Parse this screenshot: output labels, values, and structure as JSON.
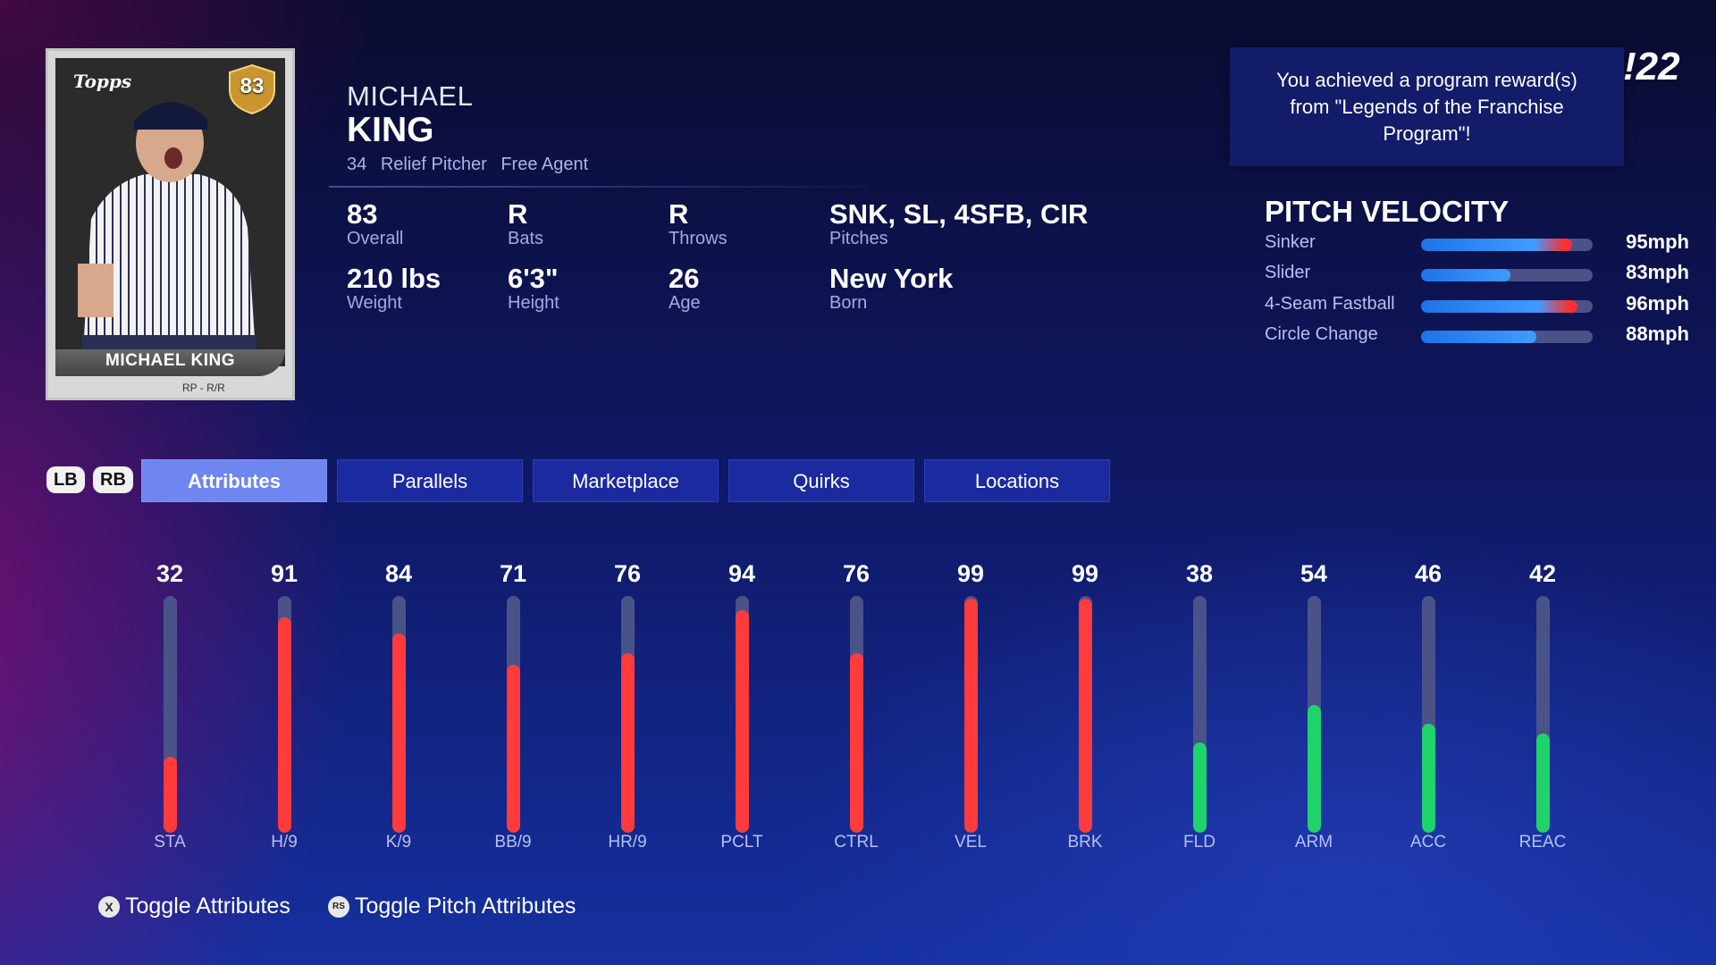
{
  "card": {
    "logo": "Topps",
    "rating": "83",
    "name": "MICHAEL KING",
    "position": "RP - R/R"
  },
  "player": {
    "first_name": "MICHAEL",
    "last_name": "KING",
    "number": "34",
    "position": "Relief Pitcher",
    "team": "Free Agent"
  },
  "stats": [
    {
      "value": "83",
      "label": "Overall"
    },
    {
      "value": "R",
      "label": "Bats"
    },
    {
      "value": "R",
      "label": "Throws"
    },
    {
      "value": "SNK, SL, 4SFB, CIR",
      "label": "Pitches"
    },
    {
      "value": "210 lbs",
      "label": "Weight"
    },
    {
      "value": "6'3\"",
      "label": "Height"
    },
    {
      "value": "26",
      "label": "Age"
    },
    {
      "value": "New York",
      "label": "Born"
    }
  ],
  "notification": "You achieved a program reward(s) from \"Legends of the Franchise Program\"!",
  "game_logo": "!22",
  "pitch_velocity": {
    "title": "PITCH VELOCITY",
    "pitches": [
      {
        "name": "Sinker",
        "value": "95mph",
        "fill": 0.88,
        "hot": true
      },
      {
        "name": "Slider",
        "value": "83mph",
        "fill": 0.52,
        "hot": false
      },
      {
        "name": "4-Seam Fastball",
        "value": "96mph",
        "fill": 0.91,
        "hot": true
      },
      {
        "name": "Circle Change",
        "value": "88mph",
        "fill": 0.67,
        "hot": false
      }
    ]
  },
  "bumpers": {
    "left": "LB",
    "right": "RB"
  },
  "tabs": [
    {
      "label": "Attributes",
      "active": true
    },
    {
      "label": "Parallels",
      "active": false
    },
    {
      "label": "Marketplace",
      "active": false
    },
    {
      "label": "Quirks",
      "active": false
    },
    {
      "label": "Locations",
      "active": false
    }
  ],
  "attributes": [
    {
      "label": "STA",
      "value": 32,
      "color": "#ff3b3b"
    },
    {
      "label": "H/9",
      "value": 91,
      "color": "#ff3b3b"
    },
    {
      "label": "K/9",
      "value": 84,
      "color": "#ff3b3b"
    },
    {
      "label": "BB/9",
      "value": 71,
      "color": "#ff3b3b"
    },
    {
      "label": "HR/9",
      "value": 76,
      "color": "#ff3b3b"
    },
    {
      "label": "PCLT",
      "value": 94,
      "color": "#ff3b3b"
    },
    {
      "label": "CTRL",
      "value": 76,
      "color": "#ff3b3b"
    },
    {
      "label": "VEL",
      "value": 99,
      "color": "#ff3b3b"
    },
    {
      "label": "BRK",
      "value": 99,
      "color": "#ff3b3b"
    },
    {
      "label": "FLD",
      "value": 38,
      "color": "#1ed36a"
    },
    {
      "label": "ARM",
      "value": 54,
      "color": "#1ed36a"
    },
    {
      "label": "ACC",
      "value": 46,
      "color": "#1ed36a"
    },
    {
      "label": "REAC",
      "value": 42,
      "color": "#1ed36a"
    }
  ],
  "hints": [
    {
      "button": "X",
      "label": "Toggle Attributes"
    },
    {
      "button": "RS",
      "label": "Toggle Pitch Attributes"
    }
  ],
  "colors": {
    "accent": "#6f86f0",
    "tab_bg": "#1c2aa0",
    "bad": "#ff3b3b",
    "good": "#1ed36a",
    "track": "#4a5388"
  }
}
